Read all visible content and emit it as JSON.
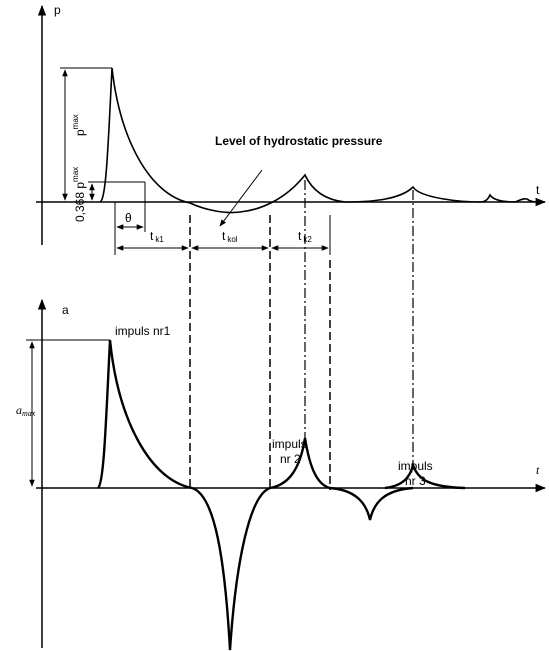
{
  "top_diagram": {
    "y_axis_label": "p",
    "x_axis_label": "t",
    "peak_label": {
      "symbol": "p",
      "subscript": "max"
    },
    "threshold_label": {
      "prefix": "0,368 p",
      "subscript": "max"
    },
    "theta_label": "θ",
    "annotation": "Level of hydrostatic pressure",
    "intervals": [
      {
        "symbol": "t",
        "subscript": "k1"
      },
      {
        "symbol": "t",
        "subscript": "kol"
      },
      {
        "symbol": "t",
        "subscript": "k2"
      }
    ]
  },
  "bottom_diagram": {
    "y_axis_label": "a",
    "x_axis_label": "t",
    "peak_label": {
      "symbol": "a",
      "subscript": "max"
    },
    "impulses": [
      [
        "impuls nr1"
      ],
      [
        "impuls",
        "nr 2"
      ],
      [
        "impuls",
        "nr 3"
      ]
    ]
  }
}
